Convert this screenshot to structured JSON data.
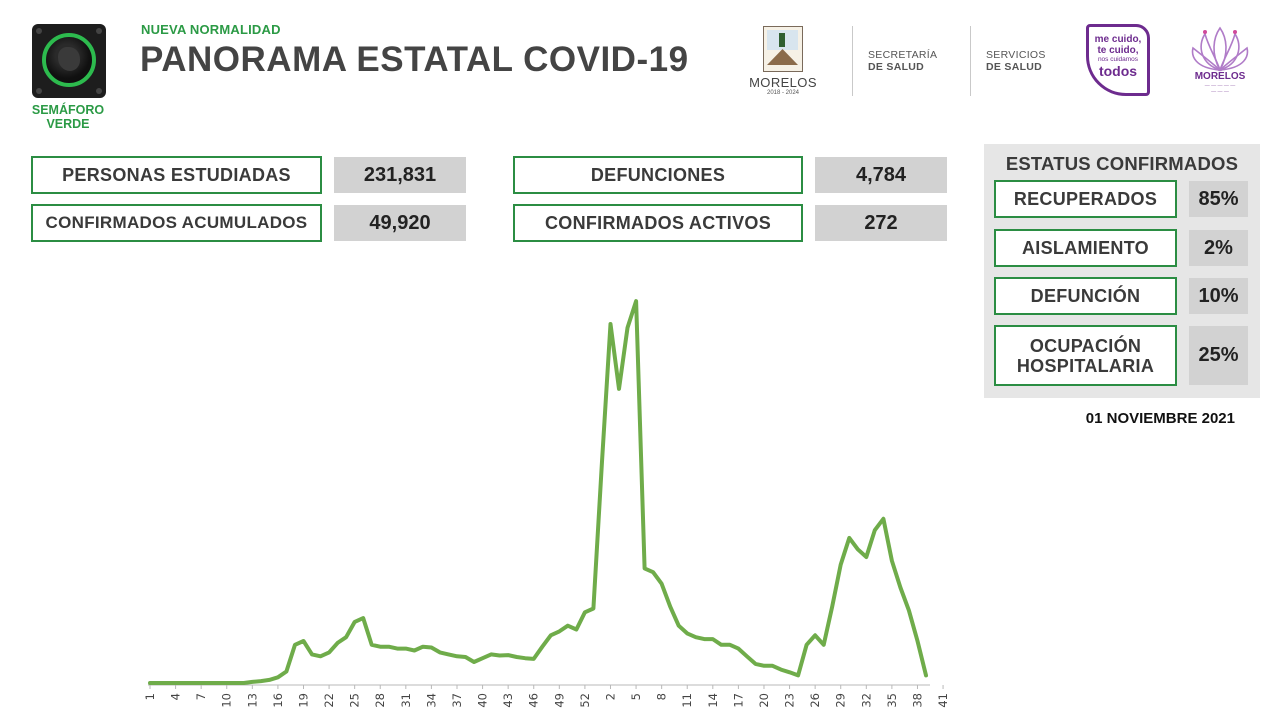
{
  "header": {
    "kicker": "NUEVA NORMALIDAD",
    "title": "PANORAMA ESTATAL COVID-19",
    "semaforo_label": [
      "SEMÁFORO",
      "VERDE"
    ]
  },
  "logos": {
    "morelos": "MORELOS",
    "morelos_years": "2018 - 2024",
    "secretaria": [
      "SECRETARÍA",
      "DE SALUD"
    ],
    "servicios": [
      "SERVICIOS",
      "DE SALUD"
    ],
    "mecuido": [
      "me cuido,",
      "te cuido,",
      "nos cuidamos",
      "todos"
    ],
    "morelos_flor": "MORELOS"
  },
  "stats": [
    {
      "label": "PERSONAS ESTUDIADAS",
      "value": "231,831"
    },
    {
      "label": "CONFIRMADOS ACUMULADOS",
      "value": "49,920"
    },
    {
      "label": "DEFUNCIONES",
      "value": "4,784"
    },
    {
      "label": "CONFIRMADOS ACTIVOS",
      "value": "272"
    }
  ],
  "status": {
    "title": "ESTATUS CONFIRMADOS",
    "items": [
      {
        "label": "RECUPERADOS",
        "value": "85%"
      },
      {
        "label": "AISLAMIENTO",
        "value": "2%"
      },
      {
        "label": "DEFUNCIÓN",
        "value": "10%"
      },
      {
        "label": "OCUPACIÓN HOSPITALARIA",
        "value": "25%"
      }
    ]
  },
  "date": "01 NOVIEMBRE 2021",
  "colors": {
    "accent": "#2b8d43",
    "line": "#6fac4a",
    "value_bg": "#d2d2d2",
    "panel_bg": "#e6e6e6"
  },
  "chart_data": {
    "type": "line",
    "title": "",
    "xlabel": "",
    "ylabel": "",
    "grid": false,
    "legend": "none",
    "x_tick_labels": [
      "1",
      "4",
      "7",
      "10",
      "13",
      "16",
      "19",
      "22",
      "25",
      "28",
      "31",
      "34",
      "37",
      "40",
      "43",
      "46",
      "49",
      "52",
      "2",
      "5",
      "8",
      "11",
      "14",
      "17",
      "20",
      "23",
      "26",
      "29",
      "32",
      "35",
      "38",
      "41"
    ],
    "ylim": [
      0,
      105
    ],
    "series": [
      {
        "name": "",
        "values": [
          0,
          0,
          0,
          0,
          0,
          0,
          0,
          0,
          0,
          0,
          0,
          0,
          0.3,
          0.5,
          0.8,
          1.5,
          3,
          10,
          11,
          7.5,
          7,
          8,
          10.5,
          12,
          16,
          17,
          10,
          9.5,
          9.5,
          9,
          9,
          8.5,
          9.5,
          9.3,
          8,
          7.5,
          7,
          6.8,
          5.5,
          6.5,
          7.5,
          7.2,
          7.3,
          6.8,
          6.5,
          6.3,
          9.5,
          12.5,
          13.5,
          15,
          14,
          18.5,
          19.5,
          58,
          94,
          77,
          93,
          100,
          30,
          29,
          26,
          20,
          15,
          13,
          12,
          11.5,
          11.5,
          10,
          10,
          9,
          7,
          5,
          4.5,
          4.5,
          3.5,
          2.8,
          2,
          10,
          12.5,
          10,
          20,
          31,
          38,
          35,
          33,
          40,
          43,
          32,
          25,
          19,
          11,
          2
        ]
      }
    ]
  }
}
